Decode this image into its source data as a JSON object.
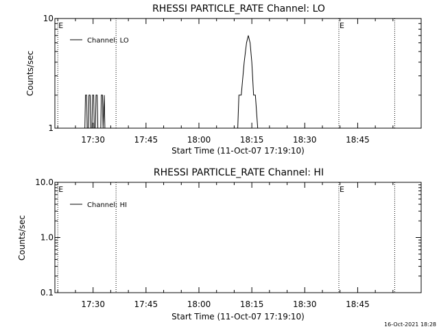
{
  "footer": {
    "timestamp": "16-Oct-2021 18:28"
  },
  "chart_data": [
    {
      "type": "line",
      "title": "RHESSI PARTICLE_RATE Channel: LO",
      "xlabel": "Start Time (11-Oct-07 17:19:10)",
      "ylabel": "Counts/sec",
      "yscale": "log",
      "ylim": [
        1,
        10
      ],
      "ytick_labels": [
        "1",
        "10"
      ],
      "ytick_values": [
        1,
        10
      ],
      "xlim": [
        "17:19:10",
        "19:03:00"
      ],
      "xtick_labels": [
        "17:30",
        "17:45",
        "18:00",
        "18:15",
        "18:30",
        "18:45"
      ],
      "legend": {
        "entries": [
          "Channel: LO"
        ],
        "position": "top-left"
      },
      "event_markers": [
        {
          "time": "17:20:00",
          "label": "E"
        },
        {
          "time": "17:36:30",
          "label": ""
        },
        {
          "time": "18:39:40",
          "label": "E"
        },
        {
          "time": "18:55:30",
          "label": ""
        }
      ],
      "series": [
        {
          "name": "Channel: LO",
          "x": [
            "17:27:40",
            "17:27:50",
            "17:28:10",
            "17:28:20",
            "17:28:40",
            "17:28:50",
            "17:29:10",
            "17:29:20",
            "17:29:40",
            "17:29:50",
            "17:30:10",
            "17:30:20",
            "17:30:40",
            "17:30:50",
            "17:31:10",
            "17:31:20",
            "17:32:10",
            "17:32:20",
            "17:32:40",
            "17:32:50",
            "17:33:10",
            "17:33:20",
            "18:11:00",
            "18:11:20",
            "18:12:00",
            "18:12:50",
            "18:13:30",
            "18:14:00",
            "18:14:30",
            "18:15:00",
            "18:15:30",
            "18:16:00",
            "18:16:40",
            "18:17:10"
          ],
          "y": [
            1,
            2,
            2,
            1,
            1,
            2,
            2,
            1,
            1,
            2,
            2,
            1,
            1,
            2,
            2,
            1,
            1,
            2,
            2,
            1,
            2,
            1,
            1,
            2,
            2,
            4,
            6,
            7,
            6,
            4,
            2,
            2,
            1,
            1
          ]
        }
      ]
    },
    {
      "type": "line",
      "title": "RHESSI PARTICLE_RATE Channel: HI",
      "xlabel": "Start Time (11-Oct-07 17:19:10)",
      "ylabel": "Counts/sec",
      "yscale": "log",
      "ylim": [
        0.1,
        10
      ],
      "ytick_labels": [
        "0.1",
        "1.0",
        "10.0"
      ],
      "ytick_values": [
        0.1,
        1,
        10
      ],
      "xlim": [
        "17:19:10",
        "19:03:00"
      ],
      "xtick_labels": [
        "17:30",
        "17:45",
        "18:00",
        "18:15",
        "18:30",
        "18:45"
      ],
      "legend": {
        "entries": [
          "Channel: HI"
        ],
        "position": "top-left"
      },
      "event_markers": [
        {
          "time": "17:20:00",
          "label": "E"
        },
        {
          "time": "17:36:30",
          "label": ""
        },
        {
          "time": "18:39:40",
          "label": "E"
        },
        {
          "time": "18:55:30",
          "label": ""
        }
      ],
      "series": [
        {
          "name": "Channel: HI",
          "x": [],
          "y": []
        }
      ]
    }
  ]
}
